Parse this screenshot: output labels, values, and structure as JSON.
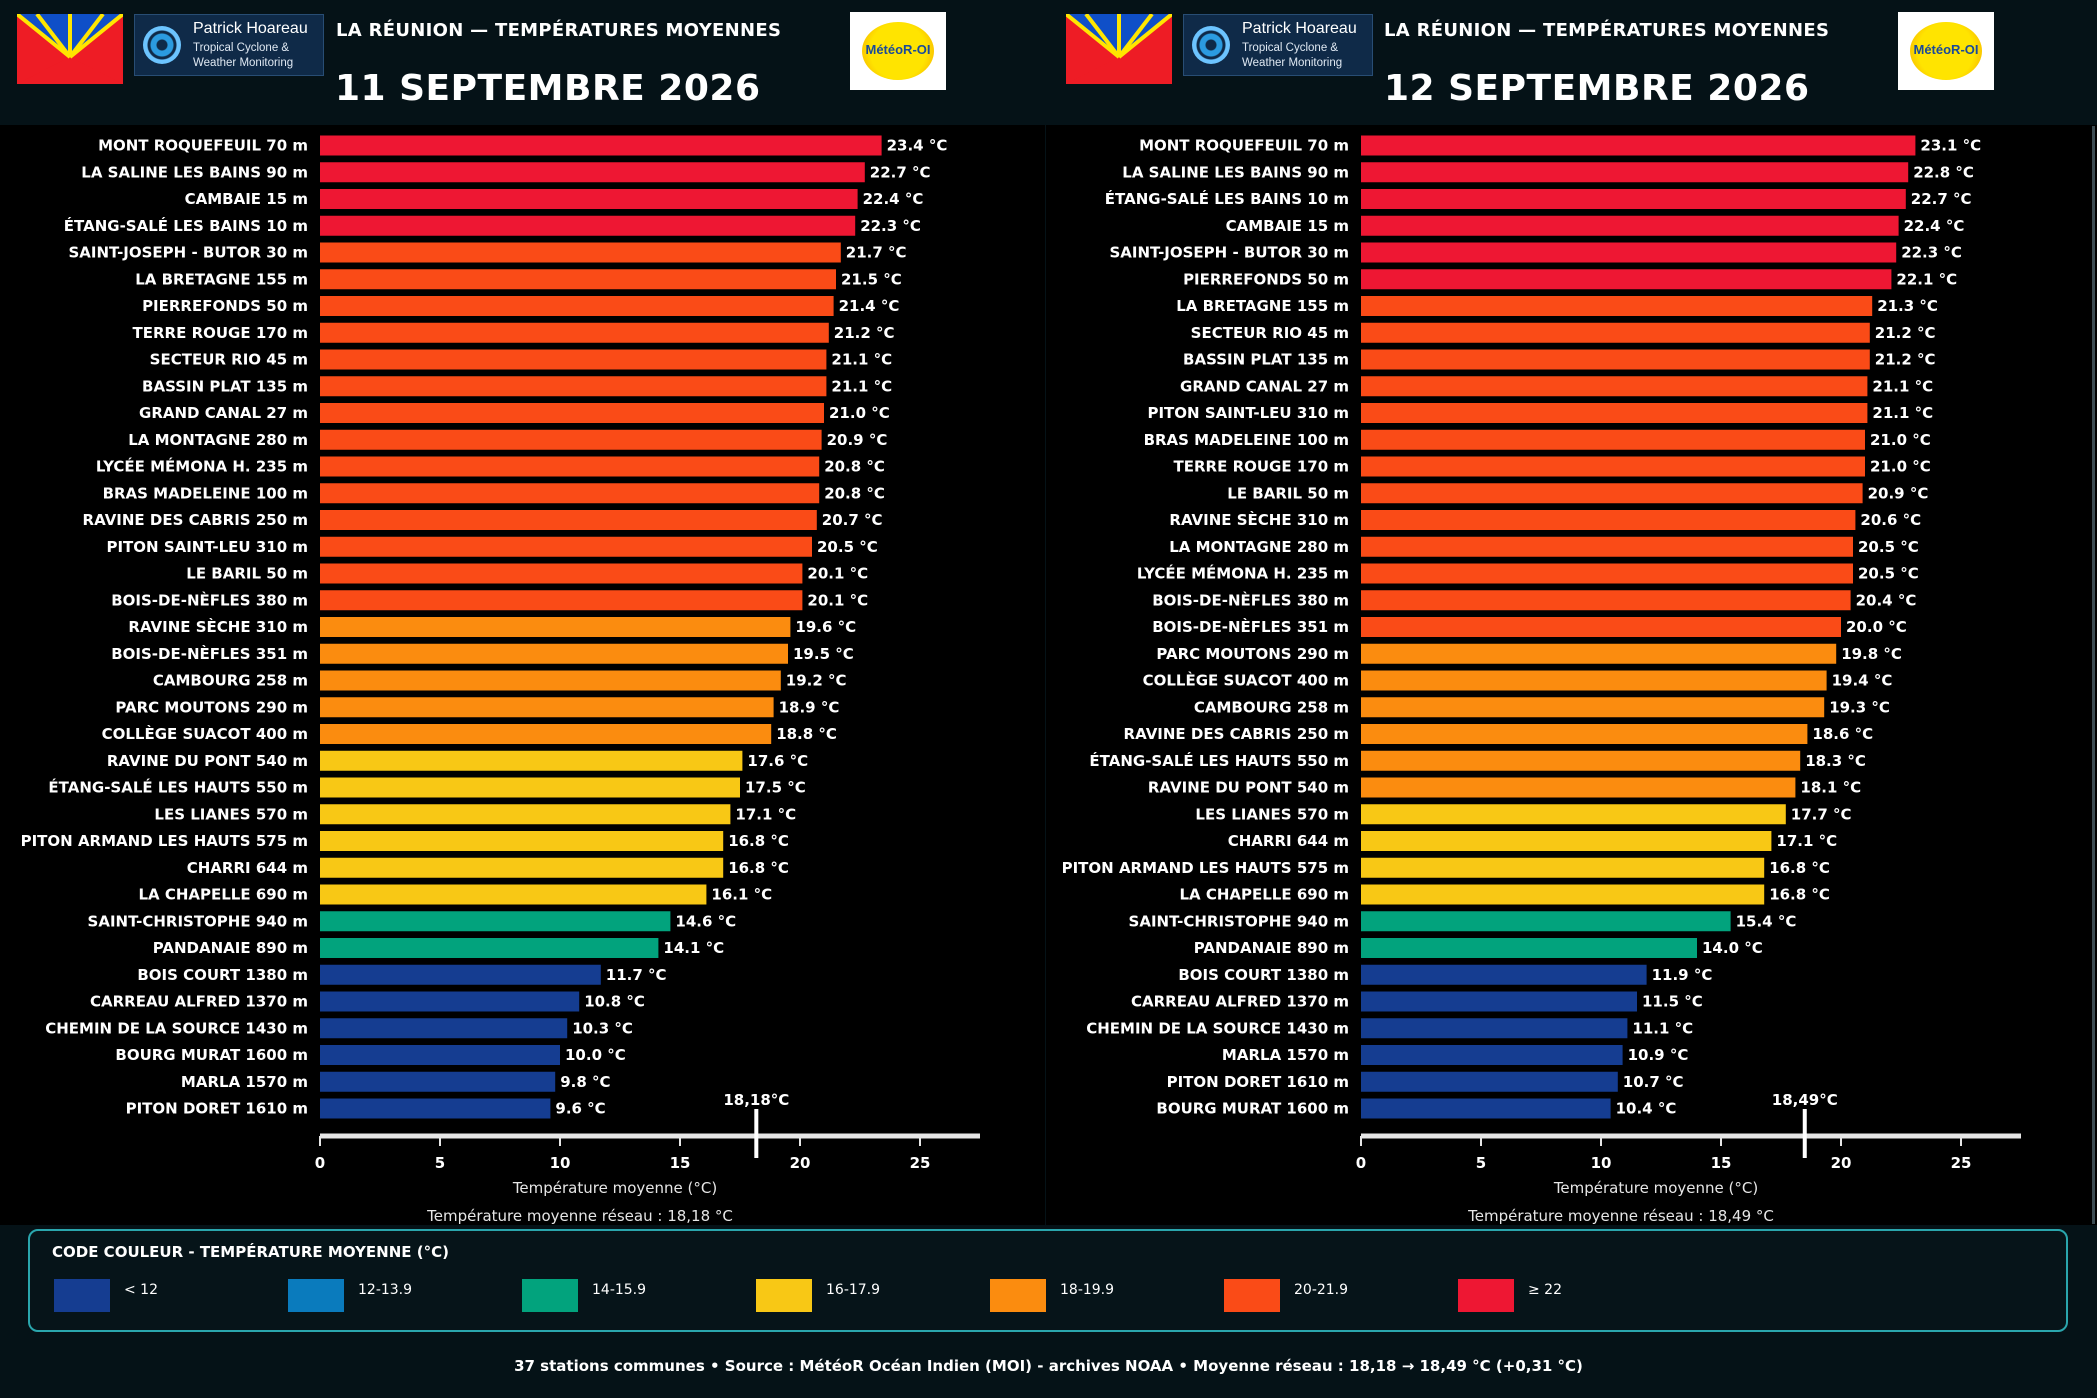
{
  "panels": [
    {
      "title": "LA RÉUNION — TEMPÉRATURES MOYENNES",
      "date": "11 SEPTEMBRE 2026",
      "brand": {
        "name": "Patrick Hoareau",
        "line1": "Tropical Cyclone &",
        "line2": "Weather Monitoring"
      },
      "logo_text": "MétéoR-OI",
      "chart_data": {
        "type": "bar",
        "orientation": "horizontal",
        "categories": [
          "MONT ROQUEFEUIL 70 m",
          "LA SALINE LES BAINS 90 m",
          "CAMBAIE 15 m",
          "ÉTANG-SALÉ LES BAINS 10 m",
          "SAINT-JOSEPH - BUTOR 30 m",
          "LA BRETAGNE 155 m",
          "PIERREFONDS 50 m",
          "TERRE ROUGE 170 m",
          "SECTEUR RIO 45 m",
          "BASSIN PLAT 135 m",
          "GRAND CANAL 27 m",
          "LA MONTAGNE 280 m",
          "LYCÉE MÉMONA H. 235 m",
          "BRAS MADELEINE 100 m",
          "RAVINE DES CABRIS 250 m",
          "PITON SAINT-LEU 310 m",
          "LE BARIL 50 m",
          "BOIS-DE-NÈFLES 380 m",
          "RAVINE SÈCHE 310 m",
          "BOIS-DE-NÈFLES 351 m",
          "CAMBOURG 258 m",
          "PARC MOUTONS 290 m",
          "COLLÈGE SUACOT 400 m",
          "RAVINE DU PONT 540 m",
          "ÉTANG-SALÉ LES HAUTS 550 m",
          "LES LIANES 570 m",
          "PITON ARMAND LES HAUTS 575 m",
          "CHARRI 644 m",
          "LA CHAPELLE 690 m",
          "SAINT-CHRISTOPHE 940 m",
          "PANDANAIE 890 m",
          "BOIS COURT 1380 m",
          "CARREAU ALFRED 1370 m",
          "CHEMIN DE LA SOURCE 1430 m",
          "BOURG MURAT 1600 m",
          "MARLA 1570 m",
          "PITON DORET 1610 m"
        ],
        "values": [
          23.4,
          22.7,
          22.4,
          22.3,
          21.7,
          21.5,
          21.4,
          21.2,
          21.1,
          21.1,
          21.0,
          20.9,
          20.8,
          20.8,
          20.7,
          20.5,
          20.1,
          20.1,
          19.6,
          19.5,
          19.2,
          18.9,
          18.8,
          17.6,
          17.5,
          17.1,
          16.8,
          16.8,
          16.1,
          14.6,
          14.1,
          11.7,
          10.8,
          10.3,
          10.0,
          9.8,
          9.6
        ],
        "value_labels": [
          "23.4 °C",
          "22.7 °C",
          "22.4 °C",
          "22.3 °C",
          "21.7 °C",
          "21.5 °C",
          "21.4 °C",
          "21.2 °C",
          "21.1 °C",
          "21.1 °C",
          "21.0 °C",
          "20.9 °C",
          "20.8 °C",
          "20.8 °C",
          "20.7 °C",
          "20.5 °C",
          "20.1 °C",
          "20.1 °C",
          "19.6 °C",
          "19.5 °C",
          "19.2 °C",
          "18.9 °C",
          "18.8 °C",
          "17.6 °C",
          "17.5 °C",
          "17.1 °C",
          "16.8 °C",
          "16.8 °C",
          "16.1 °C",
          "14.6 °C",
          "14.1 °C",
          "11.7 °C",
          "10.8 °C",
          "10.3 °C",
          "10.0 °C",
          "9.8 °C",
          "9.6 °C"
        ],
        "xlabel": "Température moyenne (°C)",
        "xlim": [
          0,
          27.5
        ],
        "xticks": [
          0,
          5,
          10,
          15,
          20,
          25
        ],
        "mean": 18.18,
        "mean_label": "18,18°C",
        "caption": "Température moyenne réseau : 18,18 °C"
      }
    },
    {
      "title": "LA RÉUNION — TEMPÉRATURES MOYENNES",
      "date": "12 SEPTEMBRE 2026",
      "brand": {
        "name": "Patrick Hoareau",
        "line1": "Tropical Cyclone &",
        "line2": "Weather Monitoring"
      },
      "logo_text": "MétéoR-OI",
      "chart_data": {
        "type": "bar",
        "orientation": "horizontal",
        "categories": [
          "MONT ROQUEFEUIL 70 m",
          "LA SALINE LES BAINS 90 m",
          "ÉTANG-SALÉ LES BAINS 10 m",
          "CAMBAIE 15 m",
          "SAINT-JOSEPH - BUTOR 30 m",
          "PIERREFONDS 50 m",
          "LA BRETAGNE 155 m",
          "SECTEUR RIO 45 m",
          "BASSIN PLAT 135 m",
          "GRAND CANAL 27 m",
          "PITON SAINT-LEU 310 m",
          "BRAS MADELEINE 100 m",
          "TERRE ROUGE 170 m",
          "LE BARIL 50 m",
          "RAVINE SÈCHE 310 m",
          "LA MONTAGNE 280 m",
          "LYCÉE MÉMONA H. 235 m",
          "BOIS-DE-NÈFLES 380 m",
          "BOIS-DE-NÈFLES 351 m",
          "PARC MOUTONS 290 m",
          "COLLÈGE SUACOT 400 m",
          "CAMBOURG 258 m",
          "RAVINE DES CABRIS 250 m",
          "ÉTANG-SALÉ LES HAUTS 550 m",
          "RAVINE DU PONT 540 m",
          "LES LIANES 570 m",
          "CHARRI 644 m",
          "PITON ARMAND LES HAUTS 575 m",
          "LA CHAPELLE 690 m",
          "SAINT-CHRISTOPHE 940 m",
          "PANDANAIE 890 m",
          "BOIS COURT 1380 m",
          "CARREAU ALFRED 1370 m",
          "CHEMIN DE LA SOURCE 1430 m",
          "MARLA 1570 m",
          "PITON DORET 1610 m",
          "BOURG MURAT 1600 m"
        ],
        "values": [
          23.1,
          22.8,
          22.7,
          22.4,
          22.3,
          22.1,
          21.3,
          21.2,
          21.2,
          21.1,
          21.1,
          21.0,
          21.0,
          20.9,
          20.6,
          20.5,
          20.5,
          20.4,
          20.0,
          19.8,
          19.4,
          19.3,
          18.6,
          18.3,
          18.1,
          17.7,
          17.1,
          16.8,
          16.8,
          15.4,
          14.0,
          11.9,
          11.5,
          11.1,
          10.9,
          10.7,
          10.4
        ],
        "value_labels": [
          "23.1 °C",
          "22.8 °C",
          "22.7 °C",
          "22.4 °C",
          "22.3 °C",
          "22.1 °C",
          "21.3 °C",
          "21.2 °C",
          "21.2 °C",
          "21.1 °C",
          "21.1 °C",
          "21.0 °C",
          "21.0 °C",
          "20.9 °C",
          "20.6 °C",
          "20.5 °C",
          "20.5 °C",
          "20.4 °C",
          "20.0 °C",
          "19.8 °C",
          "19.4 °C",
          "19.3 °C",
          "18.6 °C",
          "18.3 °C",
          "18.1 °C",
          "17.7 °C",
          "17.1 °C",
          "16.8 °C",
          "16.8 °C",
          "15.4 °C",
          "14.0 °C",
          "11.9 °C",
          "11.5 °C",
          "11.1 °C",
          "10.9 °C",
          "10.7 °C",
          "10.4 °C"
        ],
        "xlabel": "Température moyenne (°C)",
        "xlim": [
          0,
          27.5
        ],
        "xticks": [
          0,
          5,
          10,
          15,
          20,
          25
        ],
        "mean": 18.49,
        "mean_label": "18,49°C",
        "caption": "Température moyenne réseau : 18,49 °C"
      }
    }
  ],
  "legend": {
    "title": "CODE COULEUR - TEMPÉRATURE MOYENNE (°C)",
    "items": [
      {
        "label": "< 12",
        "min": -100,
        "color": "#153d91"
      },
      {
        "label": "12-13.9",
        "min": 12,
        "color": "#0a7bbd"
      },
      {
        "label": "14-15.9",
        "min": 14,
        "color": "#02a37d"
      },
      {
        "label": "16-17.9",
        "min": 16,
        "color": "#f8c815"
      },
      {
        "label": "18-19.9",
        "min": 18,
        "color": "#fb8c0f"
      },
      {
        "label": "20-21.9",
        "min": 20,
        "color": "#fa4b17"
      },
      {
        "label": "≥ 22",
        "min": 22,
        "color": "#ee1733"
      }
    ]
  },
  "footer": "37 stations communes  •  Source : MétéoR Océan Indien (MOI) - archives NOAA  •  Moyenne réseau : 18,18 → 18,49 °C (+0,31 °C)"
}
